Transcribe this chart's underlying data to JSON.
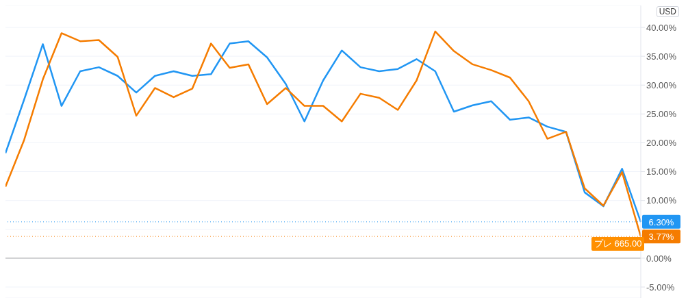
{
  "chart_data": {
    "type": "line",
    "categories": [
      null,
      null,
      null,
      null,
      null,
      null,
      null,
      null,
      null,
      null,
      null,
      null,
      null,
      null,
      null,
      null,
      null,
      null,
      null,
      null,
      null,
      null,
      null,
      null,
      null,
      null,
      null,
      null,
      null,
      null,
      null,
      null,
      null,
      null,
      null
    ],
    "series": [
      {
        "color": "#2196f3",
        "values": [
          18.2,
          27.5,
          37.1,
          26.4,
          32.4,
          33.1,
          31.6,
          28.7,
          31.6,
          32.4,
          31.6,
          31.9,
          37.2,
          37.6,
          34.8,
          30.2,
          23.7,
          30.8,
          36.0,
          33.1,
          32.4,
          32.8,
          34.5,
          32.4,
          25.4,
          26.5,
          27.2,
          24.0,
          24.4,
          22.8,
          21.9,
          11.4,
          9.0,
          15.5,
          6.3
        ],
        "value_labels": [
          null,
          null,
          null,
          null,
          null,
          null,
          null,
          null,
          null,
          null,
          null,
          null,
          null,
          null,
          null,
          null,
          null,
          null,
          null,
          null,
          null,
          null,
          null,
          null,
          null,
          null,
          null,
          null,
          null,
          null,
          null,
          null,
          null,
          null,
          "6.30%"
        ]
      },
      {
        "color": "#f57c00",
        "values": [
          12.4,
          20.5,
          31.0,
          39.0,
          37.6,
          37.8,
          34.9,
          24.7,
          29.5,
          27.9,
          29.4,
          37.2,
          33.0,
          33.6,
          26.7,
          29.5,
          26.4,
          26.4,
          23.7,
          28.5,
          27.8,
          25.7,
          30.8,
          39.3,
          35.9,
          33.6,
          32.6,
          31.3,
          27.2,
          20.7,
          21.9,
          12.1,
          9.1,
          14.9,
          3.77
        ],
        "value_labels": [
          null,
          null,
          null,
          null,
          null,
          null,
          null,
          null,
          null,
          null,
          null,
          null,
          null,
          null,
          null,
          null,
          null,
          null,
          null,
          null,
          null,
          null,
          null,
          null,
          null,
          null,
          null,
          null,
          null,
          null,
          null,
          null,
          null,
          null,
          "3.77%"
        ]
      }
    ],
    "ylim": [
      -6.9,
      43.8
    ],
    "yticks": [
      {
        "value": -5,
        "label": "-5.00%"
      },
      {
        "value": 0,
        "label": "0.00%"
      },
      {
        "value": 5,
        "label": null
      },
      {
        "value": 10,
        "label": "10.00%"
      },
      {
        "value": 15,
        "label": "15.00%"
      },
      {
        "value": 20,
        "label": "20.00%"
      },
      {
        "value": 25,
        "label": "25.00%"
      },
      {
        "value": 30,
        "label": "30.00%"
      },
      {
        "value": 35,
        "label": "35.00%"
      },
      {
        "value": 40,
        "label": "40.00%"
      }
    ],
    "grid": "y",
    "legend": false,
    "marker": "none",
    "line_style": "solid",
    "ref_lines": [
      {
        "axis": "y",
        "value": 6.3,
        "color": "#2196f3",
        "line_style": "dotted"
      },
      {
        "axis": "y",
        "value": 3.77,
        "color": "#f57c00",
        "line_style": "dotted"
      },
      {
        "axis": "y",
        "value": 0,
        "color": "#9e9e9e",
        "line_style": "solid"
      }
    ],
    "annotations": [
      "USD",
      "プレ 665.00"
    ]
  }
}
